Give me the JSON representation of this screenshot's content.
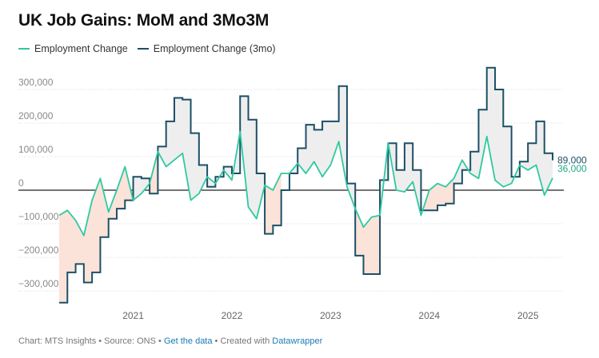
{
  "title": "UK Job Gains: MoM and 3Mo3M",
  "legend": [
    {
      "label": "Employment Change",
      "color": "#2fc9a0"
    },
    {
      "label": "Employment Change (3mo)",
      "color": "#1d4f66"
    }
  ],
  "footer": {
    "prefix": "Chart: MTS Insights • Source: ONS • ",
    "get_data": "Get the data",
    "middle": " • Created with ",
    "tool": "Datawrapper"
  },
  "chart_data": {
    "type": "line",
    "title": "UK Job Gains: MoM and 3Mo3M",
    "ylim": [
      -350000,
      350000
    ],
    "y_ticks": [
      300000,
      200000,
      100000,
      0,
      -100000,
      -200000,
      -300000
    ],
    "y_tick_labels": [
      "300,000",
      "200,000",
      "100,000",
      "0",
      "−100,000",
      "−200,000",
      "−300,000"
    ],
    "x_ticks": [
      2021,
      2022,
      2023,
      2024,
      2025
    ],
    "x_tick_labels": [
      "2021",
      "2022",
      "2023",
      "2024",
      "2025"
    ],
    "x_start": 2020.25,
    "x_step": 0.08333,
    "series": [
      {
        "name": "Employment Change",
        "style": "line",
        "color": "#2fc9a0",
        "end_label": "36,000",
        "values": [
          -75000,
          -60000,
          -90000,
          -135000,
          -30000,
          35000,
          -65000,
          0,
          70000,
          -30000,
          -10000,
          20000,
          115000,
          70000,
          90000,
          110000,
          -30000,
          -10000,
          40000,
          20000,
          60000,
          30000,
          175000,
          -50000,
          -85000,
          15000,
          0,
          50000,
          50000,
          80000,
          50000,
          85000,
          40000,
          75000,
          145000,
          10000,
          -55000,
          -110000,
          -80000,
          -75000,
          140000,
          0,
          -5000,
          25000,
          -75000,
          0,
          20000,
          10000,
          35000,
          90000,
          50000,
          35000,
          160000,
          30000,
          10000,
          20000,
          75000,
          60000,
          75000,
          -15000,
          36000
        ]
      },
      {
        "name": "Employment Change (3mo)",
        "style": "step",
        "color": "#1d4f66",
        "end_label": "89,000",
        "values": [
          -335000,
          -245000,
          -220000,
          -275000,
          -245000,
          -140000,
          -85000,
          -55000,
          -30000,
          40000,
          35000,
          -10000,
          130000,
          205000,
          275000,
          270000,
          170000,
          75000,
          10000,
          40000,
          70000,
          50000,
          280000,
          210000,
          50000,
          -130000,
          -105000,
          0,
          50000,
          125000,
          195000,
          180000,
          205000,
          205000,
          310000,
          20000,
          -195000,
          -250000,
          -250000,
          30000,
          140000,
          60000,
          140000,
          60000,
          -60000,
          -60000,
          -45000,
          -40000,
          20000,
          60000,
          115000,
          240000,
          365000,
          300000,
          190000,
          40000,
          85000,
          140000,
          205000,
          110000,
          89000
        ]
      }
    ],
    "shading": {
      "positive": "#eeeeee",
      "negative": "#fbe3da"
    }
  }
}
